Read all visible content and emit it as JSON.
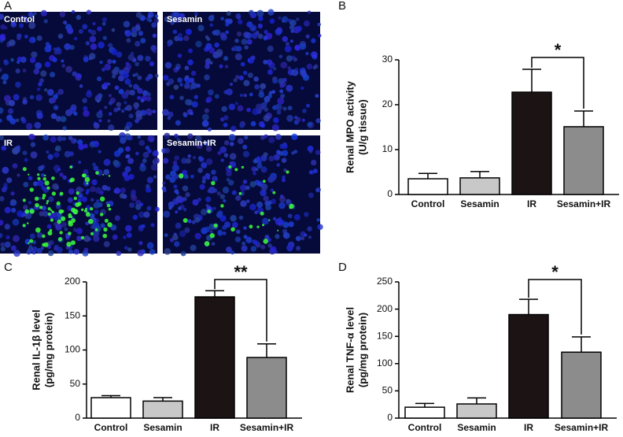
{
  "micrographs": {
    "panel_label": "A",
    "images": [
      "Control",
      "Sesamin",
      "IR",
      "Sesamin+IR"
    ]
  },
  "chart_data": [
    {
      "type": "bar",
      "panel_label": "B",
      "ylabel": [
        "Renal MPO activity",
        "(U/g tissue)"
      ],
      "categories": [
        "Control",
        "Sesamin",
        "IR",
        "Sesamin+IR"
      ],
      "values": [
        3.5,
        3.7,
        22.8,
        15.1
      ],
      "errors": [
        1.2,
        1.4,
        5.1,
        3.5
      ],
      "colors": [
        "#ffffff",
        "#c8c8c8",
        "#1c1414",
        "#8c8c8c"
      ],
      "ylim": [
        0,
        30
      ],
      "yticks": [
        0,
        10,
        20,
        30
      ],
      "annotation": "*"
    },
    {
      "type": "bar",
      "panel_label": "C",
      "ylabel": [
        "Renal IL-1β level",
        "(pg/mg protein)"
      ],
      "categories": [
        "Control",
        "Sesamin",
        "IR",
        "Sesamin+IR"
      ],
      "values": [
        30,
        25,
        178,
        89
      ],
      "errors": [
        3,
        5,
        9,
        20
      ],
      "colors": [
        "#ffffff",
        "#c8c8c8",
        "#1c1414",
        "#8c8c8c"
      ],
      "ylim": [
        0,
        200
      ],
      "yticks": [
        0,
        50,
        100,
        150,
        200
      ],
      "annotation": "**"
    },
    {
      "type": "bar",
      "panel_label": "D",
      "ylabel": [
        "Renal TNF-α level",
        "(pg/mg protein)"
      ],
      "categories": [
        "Control",
        "Sesamin",
        "IR",
        "Sesamin+IR"
      ],
      "values": [
        20,
        26,
        190,
        121
      ],
      "errors": [
        7,
        11,
        28,
        28
      ],
      "colors": [
        "#ffffff",
        "#c8c8c8",
        "#1c1414",
        "#8c8c8c"
      ],
      "ylim": [
        0,
        250
      ],
      "yticks": [
        0,
        50,
        100,
        150,
        200,
        250
      ],
      "annotation": "*"
    }
  ]
}
